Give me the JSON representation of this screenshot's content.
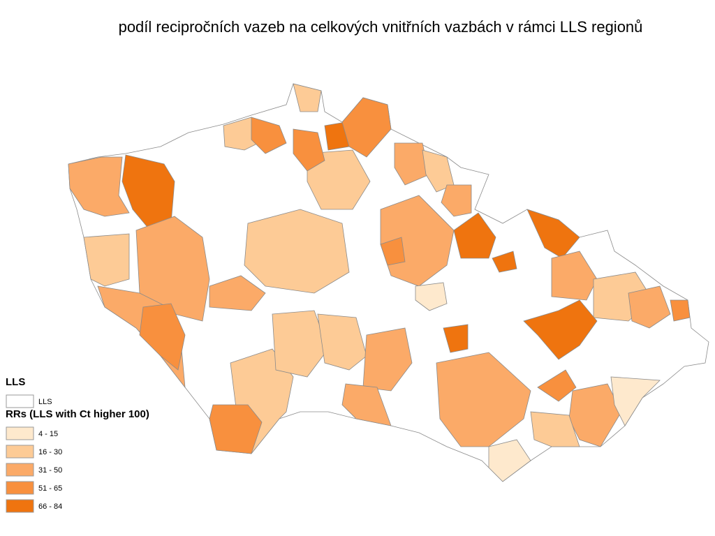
{
  "title": "podíl recipročních vazeb na celkových vnitřních vazbách v rámci LLS regionů",
  "legend": {
    "groups": [
      {
        "title": "LLS",
        "items": [
          {
            "label": "LLS",
            "color": "#ffffff"
          }
        ]
      },
      {
        "title": "RRs (LLS with Ct higher 100)",
        "items": [
          {
            "label": "4 - 15",
            "color": "#fee9cd"
          },
          {
            "label": "16 - 30",
            "color": "#fdcb96"
          },
          {
            "label": "31 - 50",
            "color": "#fbaa68"
          },
          {
            "label": "51 - 65",
            "color": "#f8903e"
          },
          {
            "label": "66 - 84",
            "color": "#ef740f"
          }
        ]
      }
    ]
  }
}
